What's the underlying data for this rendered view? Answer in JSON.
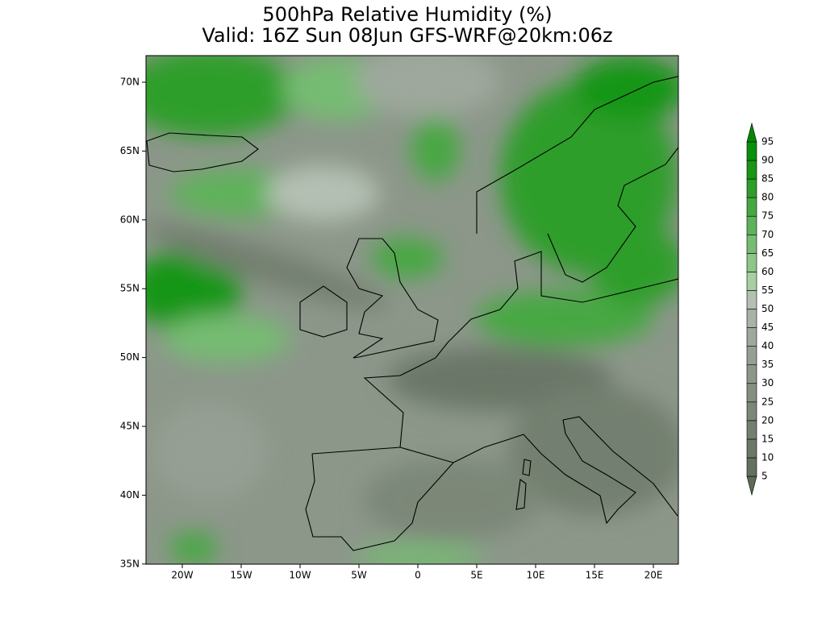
{
  "header": {
    "title": "500hPa Relative Humidity (%)",
    "subtitle": "Valid: 16Z Sun 08Jun GFS-WRF@20km:06z"
  },
  "map": {
    "lat_labels": [
      "70N",
      "65N",
      "60N",
      "55N",
      "50N",
      "45N",
      "40N",
      "35N"
    ],
    "lon_labels": [
      "20W",
      "15W",
      "10W",
      "5W",
      "0",
      "5E",
      "10E",
      "15E",
      "20E"
    ]
  },
  "colorbar": {
    "levels": [
      5,
      10,
      15,
      20,
      25,
      30,
      35,
      40,
      45,
      50,
      55,
      60,
      65,
      70,
      75,
      80,
      85,
      90,
      95
    ],
    "colors": [
      "#5c6a58",
      "#637060",
      "#6b7768",
      "#737f70",
      "#7b8778",
      "#848f81",
      "#8c978a",
      "#959f93",
      "#9ea89c",
      "#a8b2a6",
      "#b4c0b2",
      "#a6cfa2",
      "#8ec68a",
      "#76bc72",
      "#5eb25a",
      "#46a842",
      "#2e9e2a",
      "#189614",
      "#089008",
      "#008800"
    ]
  }
}
